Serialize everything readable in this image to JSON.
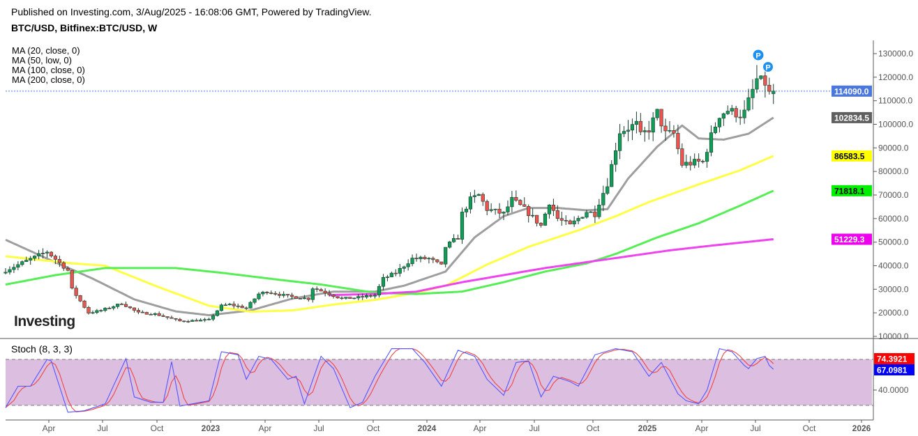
{
  "header": {
    "published": "Published on Investing.com, 3/Aug/2025 - 16:08:06 GMT, Powered by TradingView.",
    "symbol": "BTC/USD, Bitfinex:BTC/USD, W"
  },
  "legend": [
    "MA (20, close, 0)",
    "MA (50, low, 0)",
    "MA (100, close, 0)",
    "MA (200, close, 0)"
  ],
  "logo": "Investing",
  "markers": [
    "P",
    "P"
  ],
  "stoch_title": "Stoch (8, 3, 3)",
  "colors": {
    "up": "#0f9d58",
    "down": "#ef5350",
    "ma20": "#9e9e9e",
    "ma50": "#ffff44",
    "ma100": "#55ee55",
    "ma200": "#ee44ee",
    "stochK": "#5555ff",
    "stochD": "#ee4444",
    "band": "#dcbfe0",
    "last": "#4a78e0"
  },
  "chart_data": [
    {
      "type": "candlestick",
      "title": "BTC/USD, Bitfinex:BTC/USD, W",
      "x_unit": "weeks since early Feb 2022",
      "ylim": [
        10000,
        130000
      ],
      "y_ticks": [
        "130000.0",
        "120000.0",
        "110000.0",
        "100000.0",
        "90000.0",
        "80000.0",
        "70000.0",
        "60000.0",
        "50000.0",
        "40000.0",
        "30000.0",
        "20000.0",
        "10000.0"
      ],
      "x_ticks": [
        "Apr",
        "Jul",
        "Oct",
        "2023",
        "Apr",
        "Jul",
        "Oct",
        "2024",
        "Apr",
        "Jul",
        "Oct",
        "2025",
        "Apr",
        "Jul",
        "Oct",
        "2026"
      ],
      "close_anchors": [
        [
          0,
          38000
        ],
        [
          5,
          42000
        ],
        [
          10,
          46000
        ],
        [
          15,
          38000
        ],
        [
          16,
          30000
        ],
        [
          20,
          20000
        ],
        [
          23,
          21000
        ],
        [
          28,
          24000
        ],
        [
          32,
          20000
        ],
        [
          36,
          19500
        ],
        [
          42,
          16500
        ],
        [
          47,
          16800
        ],
        [
          49,
          17000
        ],
        [
          52,
          23000
        ],
        [
          54,
          23500
        ],
        [
          58,
          22000
        ],
        [
          61,
          28000
        ],
        [
          63,
          29000
        ],
        [
          68,
          27000
        ],
        [
          73,
          26000
        ],
        [
          74,
          30500
        ],
        [
          75,
          30000
        ],
        [
          81,
          26000
        ],
        [
          85,
          26500
        ],
        [
          89,
          27500
        ],
        [
          91,
          34500
        ],
        [
          94,
          37000
        ],
        [
          98,
          43000
        ],
        [
          102,
          43000
        ],
        [
          105,
          40000
        ],
        [
          106,
          48000
        ],
        [
          109,
          52000
        ],
        [
          110,
          62000
        ],
        [
          112,
          68000
        ],
        [
          114,
          70000
        ],
        [
          116,
          64000
        ],
        [
          120,
          62000
        ],
        [
          122,
          68000
        ],
        [
          125,
          64000
        ],
        [
          129,
          57000
        ],
        [
          131,
          67000
        ],
        [
          133,
          60000
        ],
        [
          136,
          57000
        ],
        [
          140,
          63000
        ],
        [
          142,
          62000
        ],
        [
          143,
          67000
        ],
        [
          145,
          75000
        ],
        [
          147,
          90000
        ],
        [
          148,
          97000
        ],
        [
          152,
          100000
        ],
        [
          153,
          95000
        ],
        [
          155,
          98000
        ],
        [
          157,
          105000
        ],
        [
          159,
          96000
        ],
        [
          161,
          96000
        ],
        [
          163,
          83000
        ],
        [
          167,
          84000
        ],
        [
          168,
          84000
        ],
        [
          170,
          95000
        ],
        [
          172,
          104000
        ],
        [
          174,
          106000
        ],
        [
          177,
          104000
        ],
        [
          178,
          105000
        ],
        [
          181,
          119000
        ],
        [
          183,
          117500
        ],
        [
          184,
          113000
        ],
        [
          185,
          114090
        ]
      ],
      "last_price": "114090.0",
      "moving_averages": [
        {
          "name": "MA (20, close, 0)",
          "last": "102834.5",
          "points": [
            [
              0,
              51000
            ],
            [
              10,
              43000
            ],
            [
              21,
              34500
            ],
            [
              31,
              25700
            ],
            [
              41,
              20600
            ],
            [
              49,
              19000
            ],
            [
              59,
              21000
            ],
            [
              69,
              26000
            ],
            [
              79,
              29000
            ],
            [
              89,
              29000
            ],
            [
              96,
              31500
            ],
            [
              106,
              37500
            ],
            [
              113,
              52000
            ],
            [
              120,
              61000
            ],
            [
              126,
              64500
            ],
            [
              133,
              64500
            ],
            [
              140,
              63500
            ],
            [
              145,
              64000
            ],
            [
              150,
              77000
            ],
            [
              157,
              90500
            ],
            [
              163,
              99500
            ],
            [
              167,
              94000
            ],
            [
              173,
              93500
            ],
            [
              179,
              96000
            ],
            [
              185,
              102834.5
            ]
          ]
        },
        {
          "name": "MA (50, low, 0)",
          "last": "86583.5",
          "points": [
            [
              0,
              44000
            ],
            [
              16,
              41000
            ],
            [
              24,
              40000
            ],
            [
              36,
              31500
            ],
            [
              49,
              23000
            ],
            [
              59,
              20500
            ],
            [
              69,
              21000
            ],
            [
              79,
              23500
            ],
            [
              89,
              25500
            ],
            [
              99,
              28500
            ],
            [
              106,
              31500
            ],
            [
              116,
              40500
            ],
            [
              126,
              48000
            ],
            [
              138,
              55000
            ],
            [
              147,
              61000
            ],
            [
              155,
              67000
            ],
            [
              167,
              74500
            ],
            [
              177,
              80500
            ],
            [
              185,
              86583.5
            ]
          ]
        },
        {
          "name": "MA (100, close, 0)",
          "last": "71818.1",
          "points": [
            [
              0,
              32000
            ],
            [
              12,
              36000
            ],
            [
              24,
              39000
            ],
            [
              41,
              39000
            ],
            [
              52,
              37000
            ],
            [
              66,
              34000
            ],
            [
              76,
              32000
            ],
            [
              89,
              28500
            ],
            [
              99,
              28000
            ],
            [
              110,
              29000
            ],
            [
              120,
              33000
            ],
            [
              130,
              37500
            ],
            [
              140,
              41000
            ],
            [
              147,
              45000
            ],
            [
              157,
              52000
            ],
            [
              167,
              58000
            ],
            [
              177,
              65500
            ],
            [
              185,
              71818.1
            ]
          ]
        },
        {
          "name": "MA (200, close, 0)",
          "last": "51229.3",
          "points": [
            [
              78,
              27500
            ],
            [
              89,
              28000
            ],
            [
              99,
              29000
            ],
            [
              110,
              33000
            ],
            [
              120,
              36000
            ],
            [
              130,
              39000
            ],
            [
              140,
              41500
            ],
            [
              150,
              44000
            ],
            [
              160,
              46500
            ],
            [
              170,
              48500
            ],
            [
              185,
              51229.3
            ]
          ]
        }
      ]
    },
    {
      "type": "line",
      "title": "Stoch (8, 3, 3)",
      "ylim": [
        0,
        100
      ],
      "bands": [
        20,
        80
      ],
      "y_ticks": [
        "40.0000"
      ],
      "k_last": "67.0981",
      "d_last": "74.3921",
      "k_points": [
        [
          0,
          17
        ],
        [
          3,
          45
        ],
        [
          6,
          45
        ],
        [
          10,
          80
        ],
        [
          11,
          78
        ],
        [
          15,
          11
        ],
        [
          19,
          13
        ],
        [
          24,
          22
        ],
        [
          29,
          81
        ],
        [
          31,
          31
        ],
        [
          35,
          24
        ],
        [
          38,
          24
        ],
        [
          40,
          77
        ],
        [
          42,
          19
        ],
        [
          45,
          22
        ],
        [
          49,
          26
        ],
        [
          52,
          90
        ],
        [
          56,
          86
        ],
        [
          58,
          54
        ],
        [
          61,
          84
        ],
        [
          64,
          80
        ],
        [
          68,
          54
        ],
        [
          70,
          58
        ],
        [
          72,
          22
        ],
        [
          76,
          84
        ],
        [
          79,
          68
        ],
        [
          83,
          17
        ],
        [
          86,
          24
        ],
        [
          89,
          58
        ],
        [
          93,
          94
        ],
        [
          98,
          94
        ],
        [
          101,
          76
        ],
        [
          105,
          45
        ],
        [
          109,
          92
        ],
        [
          113,
          84
        ],
        [
          116,
          54
        ],
        [
          120,
          33
        ],
        [
          123,
          76
        ],
        [
          126,
          78
        ],
        [
          129,
          31
        ],
        [
          132,
          58
        ],
        [
          136,
          51
        ],
        [
          138,
          45
        ],
        [
          142,
          86
        ],
        [
          147,
          94
        ],
        [
          151,
          90
        ],
        [
          155,
          58
        ],
        [
          158,
          76
        ],
        [
          162,
          35
        ],
        [
          164,
          26
        ],
        [
          167,
          22
        ],
        [
          169,
          40
        ],
        [
          172,
          94
        ],
        [
          175,
          90
        ],
        [
          178,
          72
        ],
        [
          179,
          68
        ],
        [
          181,
          81
        ],
        [
          183,
          84
        ],
        [
          184,
          72
        ],
        [
          185,
          67.1
        ]
      ]
    }
  ]
}
